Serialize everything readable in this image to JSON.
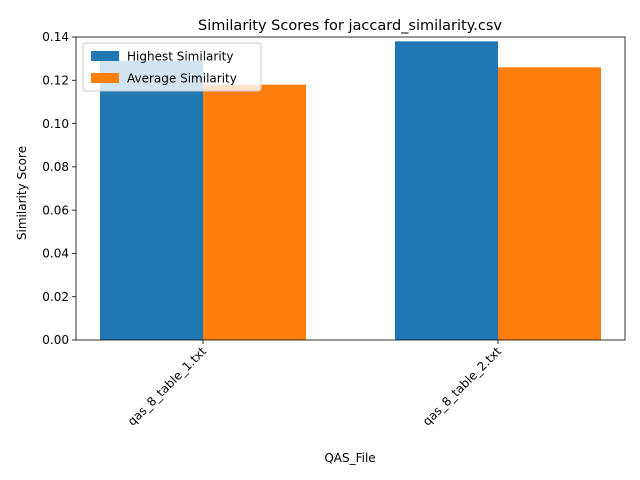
{
  "chart_data": {
    "type": "bar",
    "title": "Similarity Scores for jaccard_similarity.csv",
    "xlabel": "QAS_File",
    "ylabel": "Similarity Score",
    "categories": [
      "qas_8_table_1.txt",
      "qas_8_table_2.txt"
    ],
    "series": [
      {
        "name": "Highest Similarity",
        "color": "#1f77b4",
        "values": [
          0.129,
          0.138
        ]
      },
      {
        "name": "Average Similarity",
        "color": "#ff7f0e",
        "values": [
          0.118,
          0.126
        ]
      }
    ],
    "ylim": [
      0,
      0.14
    ],
    "yticks": [
      "0.00",
      "0.02",
      "0.04",
      "0.06",
      "0.08",
      "0.10",
      "0.12",
      "0.14"
    ],
    "grid": false,
    "legend_position": "top-left"
  }
}
